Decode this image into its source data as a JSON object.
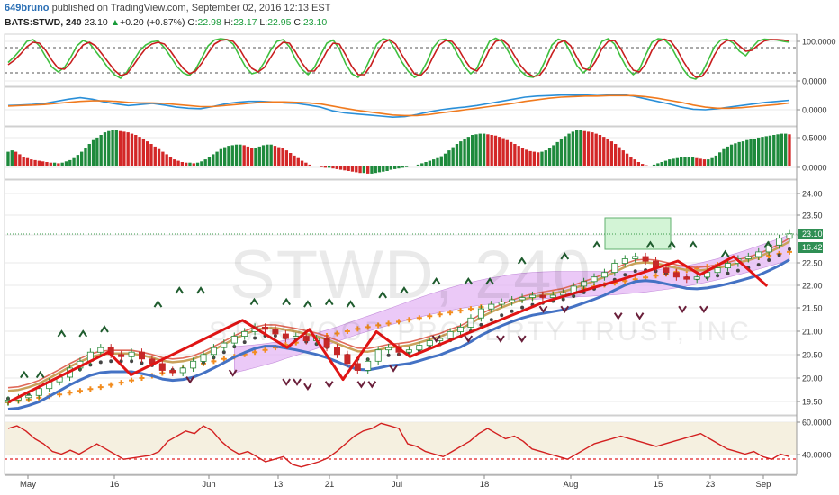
{
  "header": {
    "user": "649bruno",
    "published": " published on TradingView.com, September 02, 2016 12:13 EST",
    "symbol": "BATS:STWD, 240",
    "last": "23.10",
    "change_arrow": "▲",
    "change": "+0.20 (+0.87%)",
    "o_label": "O:",
    "o": "22.98",
    "h_label": "H:",
    "h": "23.17",
    "l_label": "L:",
    "l": "22.95",
    "c_label": "C:",
    "c": "23.10"
  },
  "watermark": {
    "ticker": "STWD, 240",
    "name": "STARWOOD PROPERTY TRUST, INC"
  },
  "colors": {
    "grid": "#e8e8e8",
    "bull": "#1e8a3c",
    "bear": "#d32727",
    "stoch_k": "#3fbf3f",
    "stoch_d": "#c81e1e",
    "macd": "#2a8fd8",
    "signal": "#f07a1e",
    "zigzag": "#e01414",
    "ema_slow": "#f28c1e",
    "cloud": "#e5b8f5",
    "rsi": "#d32020",
    "label_bg": "#2f8f54"
  },
  "chart_data": [
    {
      "panel": "stochastic",
      "type": "line",
      "yticks": [
        "100.0000",
        "0.0000"
      ],
      "ylim": [
        0,
        100
      ],
      "series": [
        {
          "values": [
            45,
            58,
            74,
            92,
            96,
            82,
            58,
            35,
            24,
            34,
            56,
            82,
            94,
            88,
            70,
            52,
            33,
            18,
            10,
            24,
            48,
            70,
            84,
            91,
            93,
            78,
            58,
            36,
            22,
            16,
            30,
            56,
            82,
            95,
            98,
            96,
            86,
            60,
            35,
            20,
            24,
            46,
            72,
            92,
            96,
            80,
            52,
            30,
            18,
            34,
            62,
            88,
            95,
            75,
            42,
            20,
            12,
            26,
            56,
            86,
            98,
            94,
            72,
            46,
            26,
            12,
            20,
            46,
            78,
            95,
            97,
            86,
            60,
            36,
            20,
            32,
            64,
            92,
            99,
            92,
            70,
            44,
            26,
            14,
            12,
            22,
            52,
            84,
            97,
            92,
            66,
            38,
            22,
            34,
            66,
            92,
            98,
            86,
            58,
            32,
            18,
            30,
            62,
            90,
            98,
            96,
            82,
            56,
            30,
            12,
            8,
            22,
            50,
            80,
            95,
            97,
            88,
            70,
            60,
            78,
            93,
            97,
            96,
            95,
            92,
            90
          ]
        },
        {
          "values": [
            40,
            50,
            64,
            80,
            90,
            88,
            72,
            50,
            32,
            30,
            44,
            66,
            84,
            90,
            82,
            64,
            46,
            28,
            16,
            20,
            38,
            58,
            76,
            86,
            90,
            86,
            70,
            50,
            32,
            20,
            26,
            44,
            66,
            86,
            94,
            96,
            92,
            76,
            52,
            32,
            24,
            34,
            56,
            78,
            90,
            88,
            68,
            44,
            26,
            26,
            44,
            70,
            88,
            86,
            62,
            36,
            18,
            18,
            38,
            66,
            88,
            96,
            86,
            62,
            40,
            20,
            16,
            30,
            58,
            84,
            94,
            92,
            76,
            52,
            32,
            26,
            44,
            74,
            92,
            96,
            84,
            60,
            38,
            22,
            14,
            16,
            34,
            64,
            88,
            94,
            82,
            56,
            32,
            28,
            48,
            76,
            92,
            94,
            76,
            50,
            28,
            24,
            42,
            72,
            92,
            97,
            92,
            74,
            48,
            26,
            12,
            14,
            32,
            62,
            84,
            94,
            94,
            82,
            70,
            72,
            84,
            93,
            96,
            96,
            95,
            93
          ]
        }
      ]
    },
    {
      "panel": "macd",
      "type": "line",
      "yticks": [
        "0.0000"
      ],
      "ylim": [
        -0.3,
        0.3
      ],
      "series": [
        {
          "values": [
            0.02,
            0.03,
            0.04,
            0.06,
            0.1,
            0.14,
            0.17,
            0.14,
            0.09,
            0.05,
            0.02,
            0.04,
            0.06,
            0.03,
            -0.01,
            -0.03,
            -0.04,
            0.0,
            0.05,
            0.08,
            0.1,
            0.1,
            0.09,
            0.07,
            0.06,
            0.03,
            -0.01,
            -0.08,
            -0.12,
            -0.14,
            -0.16,
            -0.18,
            -0.2,
            -0.19,
            -0.15,
            -0.1,
            -0.06,
            -0.03,
            -0.01,
            0.02,
            0.06,
            0.1,
            0.14,
            0.18,
            0.2,
            0.21,
            0.22,
            0.22,
            0.22,
            0.21,
            0.22,
            0.23,
            0.2,
            0.15,
            0.1,
            0.05,
            -0.01,
            -0.05,
            -0.06,
            -0.04,
            -0.01,
            0.02,
            0.05,
            0.08,
            0.1,
            0.12
          ]
        },
        {
          "values": [
            0.01,
            0.02,
            0.03,
            0.04,
            0.06,
            0.08,
            0.1,
            0.11,
            0.11,
            0.1,
            0.08,
            0.07,
            0.07,
            0.06,
            0.04,
            0.02,
            0.0,
            0.0,
            0.02,
            0.04,
            0.06,
            0.08,
            0.09,
            0.09,
            0.08,
            0.07,
            0.05,
            0.01,
            -0.03,
            -0.07,
            -0.1,
            -0.13,
            -0.16,
            -0.17,
            -0.17,
            -0.15,
            -0.12,
            -0.09,
            -0.06,
            -0.03,
            0.0,
            0.03,
            0.06,
            0.1,
            0.13,
            0.16,
            0.18,
            0.19,
            0.2,
            0.2,
            0.21,
            0.21,
            0.21,
            0.19,
            0.16,
            0.12,
            0.08,
            0.03,
            -0.01,
            -0.03,
            -0.03,
            -0.02,
            0.0,
            0.02,
            0.04,
            0.07
          ]
        }
      ]
    },
    {
      "panel": "histogram",
      "type": "bar",
      "yticks": [
        "0.5000",
        "0.0000"
      ],
      "ylim": [
        -0.15,
        0.55
      ],
      "values": [
        0.22,
        0.24,
        0.22,
        0.18,
        0.14,
        0.12,
        0.1,
        0.09,
        0.08,
        0.07,
        0.06,
        0.05,
        0.05,
        0.04,
        0.05,
        0.07,
        0.09,
        0.12,
        0.17,
        0.22,
        0.28,
        0.34,
        0.4,
        0.44,
        0.48,
        0.52,
        0.54,
        0.55,
        0.55,
        0.54,
        0.53,
        0.52,
        0.5,
        0.48,
        0.45,
        0.42,
        0.38,
        0.34,
        0.3,
        0.26,
        0.22,
        0.18,
        0.14,
        0.1,
        0.08,
        0.06,
        0.05,
        0.05,
        0.04,
        0.05,
        0.07,
        0.1,
        0.14,
        0.18,
        0.22,
        0.26,
        0.29,
        0.31,
        0.32,
        0.33,
        0.33,
        0.32,
        0.3,
        0.28,
        0.28,
        0.3,
        0.32,
        0.33,
        0.33,
        0.31,
        0.29,
        0.27,
        0.24,
        0.2,
        0.16,
        0.12,
        0.08,
        0.05,
        0.02,
        0.0,
        -0.01,
        -0.02,
        -0.03,
        -0.03,
        -0.04,
        -0.05,
        -0.06,
        -0.07,
        -0.08,
        -0.09,
        -0.1,
        -0.11,
        -0.11,
        -0.12,
        -0.12,
        -0.11,
        -0.1,
        -0.09,
        -0.08,
        -0.06,
        -0.05,
        -0.04,
        -0.03,
        -0.02,
        -0.01,
        0.0,
        0.02,
        0.04,
        0.06,
        0.08,
        0.1,
        0.12,
        0.15,
        0.19,
        0.24,
        0.29,
        0.34,
        0.38,
        0.42,
        0.45,
        0.48,
        0.49,
        0.5,
        0.5,
        0.49,
        0.48,
        0.47,
        0.45,
        0.43,
        0.4,
        0.37,
        0.34,
        0.31,
        0.28,
        0.25,
        0.23,
        0.22,
        0.21,
        0.22,
        0.24,
        0.27,
        0.32,
        0.37,
        0.42,
        0.46,
        0.5,
        0.53,
        0.55,
        0.55,
        0.54,
        0.53,
        0.52,
        0.5,
        0.48,
        0.45,
        0.42,
        0.38,
        0.34,
        0.29,
        0.24,
        0.19,
        0.14,
        0.1,
        0.06,
        0.03,
        0.01,
        0.0,
        0.02,
        0.04,
        0.06,
        0.08,
        0.1,
        0.11,
        0.12,
        0.13,
        0.13,
        0.14,
        0.14,
        0.12,
        0.11,
        0.1,
        0.1,
        0.12,
        0.16,
        0.21,
        0.26,
        0.3,
        0.33,
        0.35,
        0.37,
        0.38,
        0.4,
        0.41,
        0.42,
        0.44,
        0.45,
        0.46,
        0.47,
        0.48,
        0.49,
        0.5,
        0.5,
        0.49
      ]
    },
    {
      "panel": "price",
      "type": "candlestick",
      "yticks": [
        "24.00",
        "23.50",
        "23.00",
        "22.50",
        "22.00",
        "21.50",
        "21.00",
        "20.50",
        "20.00",
        "19.50"
      ],
      "ylim": [
        19.2,
        24.2
      ],
      "last_labels": [
        "23.10",
        "16.42"
      ],
      "xlabels": [
        "May",
        "16",
        "Jun",
        "13",
        "21",
        "Jul",
        "18",
        "Aug",
        "15",
        "23",
        "Sep"
      ],
      "close": [
        19.45,
        19.5,
        19.55,
        19.7,
        19.85,
        19.95,
        20.15,
        20.3,
        20.5,
        20.6,
        20.45,
        20.4,
        20.5,
        20.35,
        20.25,
        20.1,
        20.05,
        20.15,
        20.3,
        20.45,
        20.6,
        20.7,
        20.85,
        20.95,
        21.05,
        21.0,
        20.9,
        20.8,
        20.85,
        20.75,
        20.8,
        20.6,
        20.45,
        20.25,
        20.1,
        20.3,
        20.55,
        20.6,
        20.5,
        20.55,
        20.65,
        20.75,
        20.8,
        20.95,
        21.05,
        21.25,
        21.45,
        21.55,
        21.6,
        21.65,
        21.7,
        21.75,
        21.7,
        21.75,
        21.8,
        21.95,
        22.05,
        22.15,
        22.25,
        22.45,
        22.55,
        22.6,
        22.5,
        22.35,
        22.25,
        22.15,
        22.1,
        22.15,
        22.25,
        22.35,
        22.45,
        22.55,
        22.6,
        22.7,
        22.85,
        23.0,
        23.1
      ],
      "ema_fast": [
        19.6,
        19.62,
        19.68,
        19.76,
        19.88,
        20.0,
        20.13,
        20.24,
        20.34,
        20.4,
        20.42,
        20.42,
        20.42,
        20.38,
        20.33,
        20.26,
        20.23,
        20.25,
        20.3,
        20.39,
        20.5,
        20.62,
        20.74,
        20.84,
        20.93,
        20.98,
        20.98,
        20.94,
        20.9,
        20.85,
        20.8,
        20.73,
        20.64,
        20.55,
        20.47,
        20.46,
        20.5,
        20.55,
        20.57,
        20.6,
        20.66,
        20.73,
        20.79,
        20.88,
        20.96,
        21.08,
        21.22,
        21.33,
        21.43,
        21.52,
        21.6,
        21.66,
        21.7,
        21.74,
        21.78,
        21.85,
        21.93,
        22.01,
        22.1,
        22.21,
        22.32,
        22.4,
        22.42,
        22.4,
        22.35,
        22.3,
        22.25,
        22.24,
        22.26,
        22.3,
        22.35,
        22.41,
        22.47,
        22.54,
        22.64,
        22.75,
        22.88
      ],
      "ema_slow": [
        19.4,
        19.43,
        19.46,
        19.5,
        19.53,
        19.57,
        19.61,
        19.65,
        19.69,
        19.73,
        19.78,
        19.83,
        19.88,
        19.93,
        19.98,
        20.04,
        20.09,
        20.14,
        20.19,
        20.25,
        20.3,
        20.35,
        20.4,
        20.45,
        20.5,
        20.55,
        20.6,
        20.66,
        20.71,
        20.76,
        20.81,
        20.86,
        20.91,
        20.96,
        21.01,
        21.05,
        21.09,
        21.13,
        21.17,
        21.21,
        21.25,
        21.29,
        21.33,
        21.37,
        21.41,
        21.45,
        21.49,
        21.53,
        21.57,
        21.62,
        21.66,
        21.7,
        21.74,
        21.78,
        21.82,
        21.86,
        21.9,
        21.94,
        21.98,
        22.02,
        22.06,
        22.1,
        22.14,
        22.18,
        22.22,
        22.26,
        22.3,
        22.34,
        22.38,
        22.42,
        22.46,
        22.5,
        22.54,
        22.58,
        22.62,
        22.66,
        22.7
      ],
      "zigzag": [
        [
          0,
          19.4
        ],
        [
          18,
          20.5
        ],
        [
          22,
          20.0
        ],
        [
          42,
          21.2
        ],
        [
          50,
          20.6
        ],
        [
          54,
          21.0
        ],
        [
          60,
          19.9
        ],
        [
          66,
          20.95
        ],
        [
          72,
          20.4
        ],
        [
          96,
          21.6
        ],
        [
          110,
          22.1
        ],
        [
          120,
          22.5
        ],
        [
          124,
          22.2
        ],
        [
          130,
          22.6
        ],
        [
          136,
          21.95
        ]
      ],
      "markers_up": [
        [
          3,
          20.0
        ],
        [
          6,
          20.0
        ],
        [
          10,
          20.9
        ],
        [
          14,
          20.9
        ],
        [
          18,
          21.0
        ],
        [
          28,
          21.55
        ],
        [
          32,
          21.85
        ],
        [
          36,
          21.85
        ],
        [
          46,
          21.6
        ],
        [
          52,
          21.6
        ],
        [
          56,
          21.55
        ],
        [
          60,
          21.6
        ],
        [
          64,
          21.55
        ],
        [
          70,
          21.75
        ],
        [
          74,
          21.85
        ],
        [
          80,
          22.05
        ],
        [
          86,
          22.05
        ],
        [
          90,
          22.05
        ],
        [
          96,
          22.5
        ],
        [
          104,
          22.6
        ],
        [
          110,
          22.85
        ],
        [
          120,
          22.85
        ],
        [
          124,
          22.85
        ],
        [
          128,
          22.85
        ],
        [
          134,
          22.65
        ],
        [
          142,
          22.85
        ]
      ],
      "markers_down": [
        [
          34,
          19.9
        ],
        [
          42,
          20.05
        ],
        [
          52,
          19.85
        ],
        [
          54,
          19.85
        ],
        [
          56,
          19.75
        ],
        [
          60,
          19.8
        ],
        [
          66,
          19.8
        ],
        [
          68,
          19.8
        ],
        [
          72,
          20.15
        ],
        [
          80,
          20.8
        ],
        [
          86,
          20.8
        ],
        [
          92,
          20.8
        ],
        [
          96,
          20.8
        ],
        [
          100,
          21.45
        ],
        [
          104,
          21.45
        ],
        [
          114,
          21.3
        ],
        [
          118,
          21.3
        ],
        [
          126,
          21.45
        ],
        [
          130,
          21.45
        ]
      ]
    },
    {
      "panel": "rsi",
      "type": "line",
      "yticks": [
        "60.0000",
        "40.0000"
      ],
      "ylim": [
        25,
        65
      ],
      "values": [
        58,
        60,
        56,
        50,
        46,
        40,
        38,
        41,
        38,
        42,
        46,
        42,
        38,
        34,
        35,
        36,
        37,
        40,
        48,
        52,
        56,
        54,
        60,
        56,
        48,
        42,
        38,
        40,
        36,
        32,
        34,
        36,
        30,
        28,
        30,
        32,
        35,
        40,
        46,
        52,
        56,
        58,
        62,
        60,
        58,
        46,
        44,
        40,
        38,
        36,
        40,
        44,
        48,
        54,
        58,
        54,
        50,
        52,
        48,
        42,
        40,
        38,
        36,
        34,
        38,
        42,
        46,
        48,
        50,
        52,
        50,
        48,
        46,
        44,
        46,
        48,
        50,
        52,
        54,
        50,
        46,
        42,
        40,
        38,
        40,
        36,
        34,
        38,
        36
      ]
    }
  ]
}
